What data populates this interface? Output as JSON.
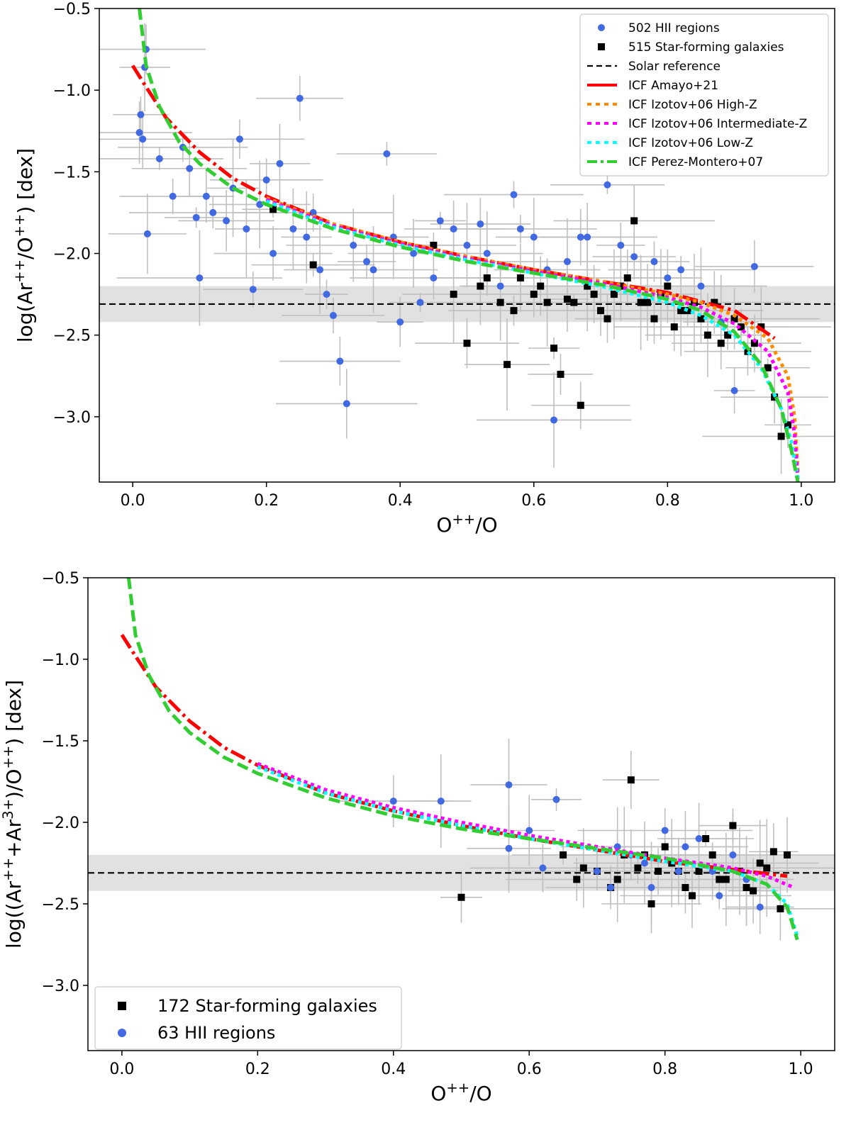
{
  "chart_data": [
    {
      "type": "scatter",
      "panel": "top",
      "xlabel": "O$^{++}$/O",
      "ylabel": "log(Ar$^{++}$/O$^{++}$) [dex]",
      "xlim": [
        -0.05,
        1.05
      ],
      "ylim": [
        -3.4,
        -0.5
      ],
      "xticks": [
        0.0,
        0.2,
        0.4,
        0.6,
        0.8,
        1.0
      ],
      "yticks": [
        -0.5,
        -1.0,
        -1.5,
        -2.0,
        -2.5,
        -3.0
      ],
      "xtick_labels": [
        "0.0",
        "0.2",
        "0.4",
        "0.6",
        "0.8",
        "1.0"
      ],
      "ytick_labels": [
        "−0.5",
        "−1.0",
        "−1.5",
        "−2.0",
        "−2.5",
        "−3.0"
      ],
      "solar_reference": {
        "y": -2.31,
        "band": [
          -2.42,
          -2.2
        ],
        "style": "black-dashed"
      },
      "legend": {
        "placement": "top-right",
        "entries": [
          {
            "label": "502 HII regions",
            "marker": "circle",
            "color": "#4169e1"
          },
          {
            "label": "515 Star-forming galaxies",
            "marker": "square",
            "color": "#000000"
          },
          {
            "label": "Solar reference",
            "marker": "dashed",
            "color": "#000000"
          },
          {
            "label": "ICF Amayo+21",
            "marker": "solid",
            "color": "#ff0000"
          },
          {
            "label": "ICF Izotov+06 High-Z",
            "marker": "dotted",
            "color": "#ff8c00"
          },
          {
            "label": "ICF Izotov+06 Intermediate-Z",
            "marker": "dotted",
            "color": "#ff00ff"
          },
          {
            "label": "ICF Izotov+06 Low-Z",
            "marker": "dotted",
            "color": "#00ffff"
          },
          {
            "label": "ICF Perez-Montero+07",
            "marker": "dashdot",
            "color": "#32cd32"
          }
        ]
      },
      "series": [
        {
          "name": "ICF Amayo+21",
          "color": "#ff0000",
          "style": "dashdot",
          "x": [
            0.0,
            0.02,
            0.05,
            0.1,
            0.15,
            0.2,
            0.3,
            0.4,
            0.5,
            0.6,
            0.7,
            0.8,
            0.9,
            0.96
          ],
          "y": [
            -0.85,
            -0.98,
            -1.17,
            -1.38,
            -1.54,
            -1.65,
            -1.82,
            -1.93,
            -2.02,
            -2.1,
            -2.17,
            -2.24,
            -2.35,
            -2.52
          ]
        },
        {
          "name": "ICF Izotov+06 High-Z",
          "color": "#ff8c00",
          "style": "dotted",
          "x": [
            0.2,
            0.3,
            0.4,
            0.5,
            0.6,
            0.7,
            0.8,
            0.85,
            0.9,
            0.95,
            0.98,
            0.99,
            0.995
          ],
          "y": [
            -1.66,
            -1.82,
            -1.93,
            -2.02,
            -2.1,
            -2.17,
            -2.25,
            -2.3,
            -2.38,
            -2.52,
            -2.75,
            -3.0,
            -3.35
          ]
        },
        {
          "name": "ICF Izotov+06 Intermediate-Z",
          "color": "#ff00ff",
          "style": "dotted",
          "x": [
            0.2,
            0.3,
            0.4,
            0.5,
            0.6,
            0.7,
            0.8,
            0.85,
            0.9,
            0.95,
            0.98,
            0.99,
            0.995
          ],
          "y": [
            -1.67,
            -1.83,
            -1.94,
            -2.03,
            -2.11,
            -2.18,
            -2.27,
            -2.33,
            -2.43,
            -2.6,
            -2.85,
            -3.1,
            -3.38
          ]
        },
        {
          "name": "ICF Izotov+06 Low-Z",
          "color": "#00ffff",
          "style": "dotted",
          "x": [
            0.2,
            0.3,
            0.4,
            0.5,
            0.6,
            0.7,
            0.8,
            0.85,
            0.9,
            0.94,
            0.97,
            0.985,
            0.995
          ],
          "y": [
            -1.68,
            -1.84,
            -1.95,
            -2.04,
            -2.12,
            -2.2,
            -2.3,
            -2.38,
            -2.5,
            -2.7,
            -2.95,
            -3.15,
            -3.38
          ]
        },
        {
          "name": "ICF Perez-Montero+07",
          "color": "#32cd32",
          "style": "dashed",
          "x": [
            0.01,
            0.02,
            0.04,
            0.07,
            0.1,
            0.15,
            0.2,
            0.3,
            0.4,
            0.5,
            0.6,
            0.7,
            0.8,
            0.85,
            0.9,
            0.94,
            0.97,
            0.985,
            0.995
          ],
          "y": [
            -0.5,
            -0.85,
            -1.1,
            -1.32,
            -1.45,
            -1.6,
            -1.7,
            -1.85,
            -1.96,
            -2.05,
            -2.12,
            -2.19,
            -2.28,
            -2.35,
            -2.48,
            -2.68,
            -2.95,
            -3.2,
            -3.4
          ]
        }
      ],
      "points": {
        "hii_regions": {
          "x": [
            0.01,
            0.012,
            0.015,
            0.018,
            0.02,
            0.022,
            0.04,
            0.06,
            0.075,
            0.085,
            0.095,
            0.1,
            0.11,
            0.12,
            0.14,
            0.16,
            0.17,
            0.18,
            0.2,
            0.22,
            0.25,
            0.26,
            0.28,
            0.3,
            0.31,
            0.32,
            0.35,
            0.38,
            0.4,
            0.42,
            0.45,
            0.48,
            0.5,
            0.52,
            0.55,
            0.57,
            0.6,
            0.63,
            0.65,
            0.68,
            0.71,
            0.75,
            0.8,
            0.85,
            0.88,
            0.9,
            0.93,
            0.15,
            0.19,
            0.21,
            0.24,
            0.27,
            0.29,
            0.33,
            0.36,
            0.39,
            0.43,
            0.46,
            0.53,
            0.58,
            0.62,
            0.67,
            0.73,
            0.78,
            0.82
          ],
          "y": [
            -1.26,
            -1.15,
            -1.3,
            -0.86,
            -0.75,
            -1.88,
            -1.42,
            -1.65,
            -1.35,
            -1.48,
            -1.78,
            -2.15,
            -1.65,
            -1.75,
            -1.8,
            -1.3,
            -1.85,
            -2.22,
            -1.55,
            -1.45,
            -1.05,
            -1.9,
            -2.1,
            -2.38,
            -2.66,
            -2.92,
            -2.05,
            -1.39,
            -2.42,
            -2.0,
            -2.15,
            -1.85,
            -1.95,
            -1.82,
            -2.2,
            -1.64,
            -1.9,
            -3.02,
            -2.05,
            -1.9,
            -1.58,
            -2.02,
            -2.15,
            -2.2,
            -2.42,
            -2.84,
            -2.08,
            -1.6,
            -1.7,
            -2.0,
            -1.85,
            -1.75,
            -2.25,
            -1.95,
            -2.1,
            -1.9,
            -2.3,
            -1.8,
            -2.0,
            -1.85,
            -2.1,
            -1.9,
            -1.95,
            -2.05,
            -2.1
          ]
        },
        "star_forming_galaxies": {
          "x": [
            0.21,
            0.27,
            0.45,
            0.5,
            0.52,
            0.55,
            0.56,
            0.58,
            0.6,
            0.62,
            0.63,
            0.64,
            0.65,
            0.67,
            0.68,
            0.7,
            0.72,
            0.74,
            0.75,
            0.76,
            0.78,
            0.8,
            0.82,
            0.84,
            0.86,
            0.88,
            0.9,
            0.92,
            0.94,
            0.96,
            0.97,
            0.98,
            0.48,
            0.53,
            0.57,
            0.61,
            0.66,
            0.69,
            0.71,
            0.73,
            0.77,
            0.79,
            0.81,
            0.83,
            0.85,
            0.87,
            0.89,
            0.91,
            0.93,
            0.95
          ],
          "y": [
            -1.73,
            -2.07,
            -1.95,
            -2.55,
            -2.2,
            -2.3,
            -2.68,
            -2.15,
            -2.25,
            -2.3,
            -2.58,
            -2.74,
            -2.28,
            -2.93,
            -2.2,
            -2.35,
            -2.25,
            -2.15,
            -1.8,
            -2.3,
            -2.4,
            -2.2,
            -2.35,
            -2.3,
            -2.5,
            -2.55,
            -2.4,
            -2.6,
            -2.45,
            -2.88,
            -3.12,
            -3.05,
            -2.25,
            -2.15,
            -2.35,
            -2.2,
            -2.3,
            -2.25,
            -2.4,
            -2.2,
            -2.3,
            -2.25,
            -2.45,
            -2.35,
            -2.4,
            -2.3,
            -2.5,
            -2.45,
            -2.55,
            -2.7
          ]
        }
      }
    },
    {
      "type": "scatter",
      "panel": "bottom",
      "xlabel": "O$^{++}$/O",
      "ylabel": "log((Ar$^{++}$+Ar$^{3+}$)/O$^{++}$) [dex]",
      "xlim": [
        -0.05,
        1.05
      ],
      "ylim": [
        -3.4,
        -0.5
      ],
      "xticks": [
        0.0,
        0.2,
        0.4,
        0.6,
        0.8,
        1.0
      ],
      "yticks": [
        -0.5,
        -1.0,
        -1.5,
        -2.0,
        -2.5,
        -3.0
      ],
      "xtick_labels": [
        "0.0",
        "0.2",
        "0.4",
        "0.6",
        "0.8",
        "1.0"
      ],
      "ytick_labels": [
        "−0.5",
        "−1.0",
        "−1.5",
        "−2.0",
        "−2.5",
        "−3.0"
      ],
      "solar_reference": {
        "y": -2.31,
        "band": [
          -2.42,
          -2.2
        ],
        "style": "black-dashed"
      },
      "legend": {
        "placement": "bottom-left",
        "entries": [
          {
            "label": "172 Star-forming galaxies",
            "marker": "square",
            "color": "#000000"
          },
          {
            "label": "63 HII regions",
            "marker": "circle",
            "color": "#4169e1"
          }
        ]
      },
      "series": [
        {
          "name": "ICF Amayo+21",
          "color": "#ff0000",
          "style": "dashdot",
          "x": [
            0.0,
            0.02,
            0.05,
            0.1,
            0.15,
            0.2,
            0.3,
            0.4,
            0.5,
            0.6,
            0.7,
            0.8,
            0.9,
            0.98
          ],
          "y": [
            -0.85,
            -0.98,
            -1.17,
            -1.38,
            -1.54,
            -1.65,
            -1.82,
            -1.93,
            -2.02,
            -2.1,
            -2.17,
            -2.24,
            -2.29,
            -2.33
          ]
        },
        {
          "name": "ICF Izotov+06 Intermediate-Z",
          "color": "#ff00ff",
          "style": "dotted",
          "x": [
            0.2,
            0.3,
            0.4,
            0.5,
            0.6,
            0.7,
            0.8,
            0.9,
            0.95,
            0.99
          ],
          "y": [
            -1.64,
            -1.8,
            -1.91,
            -2.0,
            -2.08,
            -2.15,
            -2.22,
            -2.28,
            -2.33,
            -2.4
          ]
        },
        {
          "name": "ICF Izotov+06 Low-Z",
          "color": "#00ffff",
          "style": "dotted",
          "x": [
            0.2,
            0.3,
            0.4,
            0.5,
            0.6,
            0.7,
            0.8,
            0.9,
            0.95,
            0.98,
            0.995
          ],
          "y": [
            -1.66,
            -1.82,
            -1.93,
            -2.02,
            -2.1,
            -2.17,
            -2.24,
            -2.3,
            -2.38,
            -2.5,
            -2.7
          ]
        },
        {
          "name": "ICF Perez-Montero+07",
          "color": "#32cd32",
          "style": "dashed",
          "x": [
            0.01,
            0.02,
            0.04,
            0.07,
            0.1,
            0.15,
            0.2,
            0.3,
            0.4,
            0.5,
            0.6,
            0.7,
            0.8,
            0.9,
            0.95,
            0.98,
            0.995
          ],
          "y": [
            -0.5,
            -0.85,
            -1.1,
            -1.32,
            -1.45,
            -1.6,
            -1.7,
            -1.85,
            -1.96,
            -2.04,
            -2.1,
            -2.16,
            -2.22,
            -2.3,
            -2.38,
            -2.52,
            -2.72
          ]
        }
      ],
      "points": {
        "star_forming_galaxies": {
          "x": [
            0.5,
            0.65,
            0.67,
            0.7,
            0.72,
            0.74,
            0.75,
            0.76,
            0.78,
            0.8,
            0.82,
            0.84,
            0.86,
            0.88,
            0.9,
            0.92,
            0.94,
            0.96,
            0.97,
            0.98,
            0.68,
            0.73,
            0.77,
            0.79,
            0.81,
            0.83,
            0.85,
            0.87,
            0.89,
            0.91,
            0.93,
            0.95
          ],
          "y": [
            -2.46,
            -2.2,
            -2.35,
            -2.3,
            -2.4,
            -2.2,
            -1.74,
            -2.28,
            -2.5,
            -2.15,
            -2.3,
            -2.45,
            -2.1,
            -2.35,
            -2.02,
            -2.4,
            -2.25,
            -2.18,
            -2.53,
            -2.2,
            -2.28,
            -2.35,
            -2.2,
            -2.3,
            -2.25,
            -2.4,
            -2.3,
            -2.2,
            -2.35,
            -2.3,
            -2.42,
            -2.28
          ]
        },
        "hii_regions": {
          "x": [
            0.4,
            0.47,
            0.57,
            0.6,
            0.62,
            0.64,
            0.57,
            0.7,
            0.73,
            0.75,
            0.78,
            0.8,
            0.82,
            0.85,
            0.88,
            0.9,
            0.92,
            0.94,
            0.72,
            0.77,
            0.83,
            0.87
          ],
          "y": [
            -1.87,
            -1.87,
            -1.77,
            -2.05,
            -2.28,
            -1.86,
            -2.16,
            -2.3,
            -2.15,
            -2.2,
            -2.4,
            -2.05,
            -2.3,
            -2.1,
            -2.45,
            -2.2,
            -2.35,
            -2.52,
            -2.4,
            -2.25,
            -2.15,
            -2.3
          ]
        }
      }
    }
  ]
}
